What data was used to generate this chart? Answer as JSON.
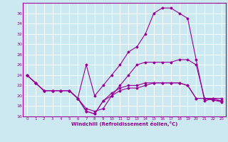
{
  "xlabel": "Windchill (Refroidissement éolien,°C)",
  "bg_color": "#cce8f0",
  "line_color": "#990099",
  "grid_color": "#ffffff",
  "xlim": [
    -0.5,
    23.5
  ],
  "ylim": [
    16,
    38
  ],
  "yticks": [
    16,
    18,
    20,
    22,
    24,
    26,
    28,
    30,
    32,
    34,
    36
  ],
  "xticks": [
    0,
    1,
    2,
    3,
    4,
    5,
    6,
    7,
    8,
    9,
    10,
    11,
    12,
    13,
    14,
    15,
    16,
    17,
    18,
    19,
    20,
    21,
    22,
    23
  ],
  "line1_x": [
    0,
    1,
    2,
    3,
    4,
    5,
    6,
    7,
    8,
    9,
    10,
    11,
    12,
    13,
    14,
    15,
    16,
    17,
    18,
    19,
    20,
    21,
    22,
    23
  ],
  "line1_y": [
    24,
    22.5,
    21,
    21,
    21,
    21,
    19.5,
    26,
    20,
    22,
    24,
    26,
    28.5,
    29.5,
    32,
    36,
    37,
    37,
    36,
    35,
    27,
    19,
    19.5,
    19.5
  ],
  "line2_x": [
    0,
    1,
    2,
    3,
    4,
    5,
    6,
    7,
    8,
    9,
    10,
    11,
    12,
    13,
    14,
    15,
    16,
    17,
    18,
    19,
    20,
    21,
    22,
    23
  ],
  "line2_y": [
    24,
    22.5,
    21,
    21,
    21,
    21,
    19.5,
    17.5,
    17,
    17.5,
    20,
    22,
    24,
    26,
    26.5,
    26.5,
    26.5,
    26.5,
    27,
    27,
    26,
    19.5,
    19.5,
    19
  ],
  "line3_x": [
    0,
    1,
    2,
    3,
    4,
    5,
    6,
    7,
    8,
    9,
    10,
    11,
    12,
    13,
    14,
    15,
    16,
    17,
    18,
    19,
    20,
    21,
    22,
    23
  ],
  "line3_y": [
    24,
    22.5,
    21,
    21,
    21,
    21,
    19.5,
    17,
    16.5,
    19,
    20.5,
    21.5,
    22,
    22,
    22.5,
    22.5,
    22.5,
    22.5,
    22.5,
    22,
    19.5,
    19.5,
    19.2,
    19
  ],
  "line4_x": [
    0,
    1,
    2,
    3,
    4,
    5,
    6,
    7,
    8,
    9,
    10,
    11,
    12,
    13,
    14,
    15,
    16,
    17,
    18,
    19,
    20,
    21,
    22,
    23
  ],
  "line4_y": [
    24,
    22.5,
    21,
    21,
    21,
    21,
    19.5,
    17,
    16.5,
    19,
    20,
    21,
    21.5,
    21.5,
    22,
    22.5,
    22.5,
    22.5,
    22.5,
    22,
    19.5,
    19.5,
    19.2,
    18.8
  ]
}
